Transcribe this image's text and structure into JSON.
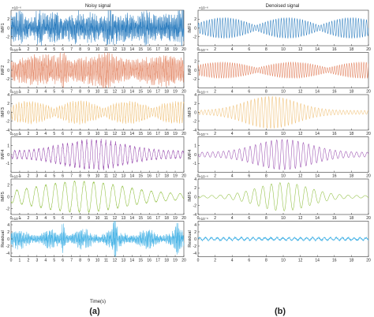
{
  "figure": {
    "exponent_label": "×10⁻⁶",
    "x_axis_label": "Time(s)",
    "panel_label_left": "(a)",
    "panel_label_right": "(b)"
  },
  "chart_data": [
    {
      "type": "line",
      "panel": "(a)",
      "title": "Noisy signal",
      "xlabel": "Time(s)",
      "xlim": [
        0,
        20
      ],
      "x_ticks": [
        "0",
        "1",
        "2",
        "3",
        "4",
        "5",
        "6",
        "7",
        "8",
        "9",
        "10",
        "11",
        "12",
        "13",
        "14",
        "15",
        "16",
        "17",
        "18",
        "19",
        "20"
      ],
      "y_scale_note": "×10⁻⁶",
      "series": [
        {
          "name": "IMF1",
          "color": "#2f7fc0",
          "ylim": [
            -4,
            4
          ],
          "y_ticks": [
            "2",
            "0",
            "-2"
          ],
          "envelope_peak": 2.5,
          "character": "dense high-frequency noise"
        },
        {
          "name": "IMF2",
          "color": "#e2825f",
          "ylim": [
            -4,
            4
          ],
          "y_ticks": [
            "2",
            "0",
            "-2"
          ],
          "envelope_peak": 2.8,
          "character": "dense oscillation with bursts near t=6 and t=11"
        },
        {
          "name": "IMF3",
          "color": "#f0c27a",
          "ylim": [
            -4,
            4
          ],
          "y_ticks": [
            "4",
            "2",
            "0",
            "-2",
            "-4"
          ],
          "envelope_peak": 2.3,
          "character": "amplitude-modulated oscillation"
        },
        {
          "name": "IMF4",
          "color": "#9a4fb0",
          "ylim": [
            -2,
            2
          ],
          "y_ticks": [
            "1",
            "0",
            "-1"
          ],
          "envelope_peak": 1.6,
          "character": "oscillation peaking near t=9–10"
        },
        {
          "name": "IMF5",
          "color": "#8fbf3f",
          "ylim": [
            -3,
            3
          ],
          "y_ticks": [
            "2",
            "0",
            "-2"
          ],
          "envelope_peak": 2.6,
          "character": "low-frequency oscillation"
        },
        {
          "name": "Residual",
          "color": "#47b3e6",
          "ylim": [
            -5,
            5
          ],
          "y_ticks": [
            "4",
            "2",
            "0",
            "-2",
            "-4"
          ],
          "envelope_peak": 2.5,
          "character": "noise with spikes near t=6, 12 and 19"
        }
      ]
    },
    {
      "type": "line",
      "panel": "(b)",
      "title": "Denoised signal",
      "xlabel": "Time(s)",
      "xlim": [
        0,
        20
      ],
      "x_ticks": [
        "0",
        "2",
        "4",
        "6",
        "8",
        "10",
        "12",
        "14",
        "16",
        "18",
        "20"
      ],
      "y_scale_note": "×10⁻⁶",
      "series": [
        {
          "name": "IMF1",
          "color": "#2f7fc0",
          "ylim": [
            -4,
            4
          ],
          "y_ticks": [
            "2",
            "0",
            "-2"
          ],
          "envelope_peak": 2.3,
          "character": "clean modulated oscillation"
        },
        {
          "name": "IMF2",
          "color": "#e2825f",
          "ylim": [
            -4,
            4
          ],
          "y_ticks": [
            "2",
            "0",
            "-2"
          ],
          "envelope_peak": 1.8,
          "character": "clean modulated oscillation"
        },
        {
          "name": "IMF3",
          "color": "#f0c27a",
          "ylim": [
            -4,
            4
          ],
          "y_ticks": [
            "4",
            "2",
            "0",
            "-2",
            "-4"
          ],
          "envelope_peak": 3.6,
          "character": "strong burst centered near t=8"
        },
        {
          "name": "IMF4",
          "color": "#9a4fb0",
          "ylim": [
            -2,
            2
          ],
          "y_ticks": [
            "1",
            "0",
            "-1"
          ],
          "envelope_peak": 1.7,
          "character": "burst centered near t=10"
        },
        {
          "name": "IMF5",
          "color": "#8fbf3f",
          "ylim": [
            -4,
            4
          ],
          "y_ticks": [
            "4",
            "2",
            "0",
            "-2",
            "-4"
          ],
          "envelope_peak": 3.2,
          "character": "burst centered near t=10"
        },
        {
          "name": "Residual",
          "color": "#47b3e6",
          "ylim": [
            -5,
            5
          ],
          "y_ticks": [
            "4",
            "2",
            "0",
            "-2",
            "-4"
          ],
          "envelope_peak": 0.4,
          "character": "small residual noise"
        }
      ]
    }
  ]
}
